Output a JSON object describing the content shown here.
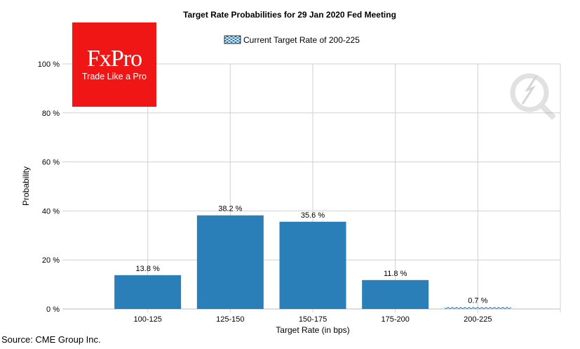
{
  "logo": {
    "brand": "FxPro",
    "tagline": "Trade Like a Pro"
  },
  "source": "Source: CME Group Inc.",
  "colors": {
    "bar": "#2a7fb8",
    "grid": "#d0d0d0",
    "logo": "#f01616"
  },
  "chart_data": {
    "type": "bar",
    "title": "Target Rate Probabilities for 29 Jan 2020 Fed Meeting",
    "legend": {
      "label": "Current Target Rate of 200-225",
      "placement": "top-center"
    },
    "xlabel": "Target Rate (in bps)",
    "ylabel": "Probability",
    "categories": [
      "100-125",
      "125-150",
      "150-175",
      "175-200",
      "200-225"
    ],
    "values": [
      13.8,
      38.2,
      35.6,
      11.8,
      0.7
    ],
    "data_labels": [
      "13.8 %",
      "38.2 %",
      "35.6 %",
      "11.8 %",
      "0.7 %"
    ],
    "highlighted_category": "200-225",
    "ylim": [
      0,
      100
    ],
    "yticks": [
      0,
      20,
      40,
      60,
      80,
      100
    ],
    "ytick_labels": [
      "0 %",
      "20 %",
      "40 %",
      "60 %",
      "80 %",
      "100 %"
    ],
    "grid": true
  }
}
